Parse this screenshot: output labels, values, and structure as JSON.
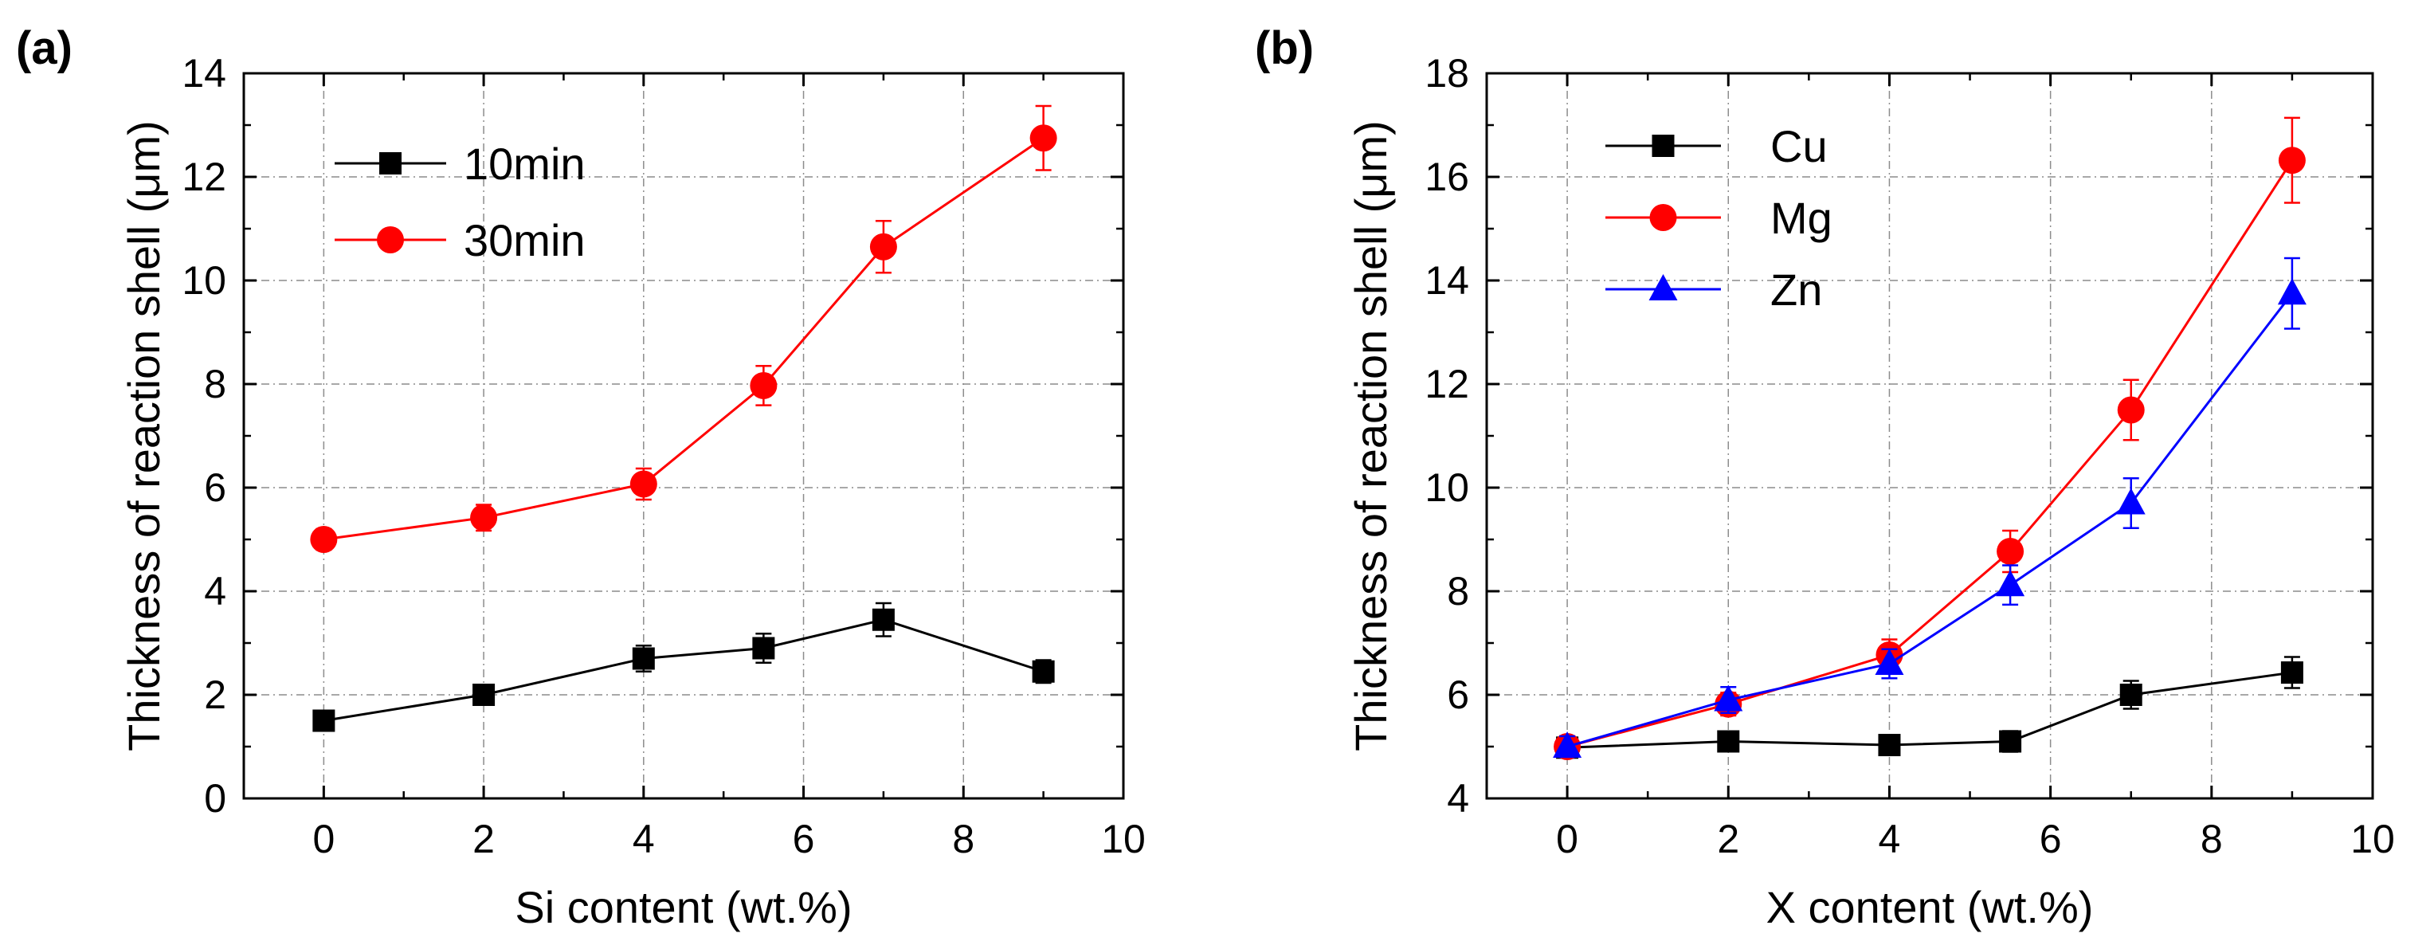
{
  "chart_data": [
    {
      "type": "line",
      "panel_label": "(a)",
      "title": "",
      "xlabel": "Si content (wt.%)",
      "ylabel": "Thickness of reaction shell (μm)",
      "xlim": [
        -1,
        10
      ],
      "ylim": [
        0,
        14
      ],
      "xticks": [
        0,
        2,
        4,
        6,
        8,
        10
      ],
      "yticks": [
        0,
        2,
        4,
        6,
        8,
        10,
        12,
        14
      ],
      "grid": true,
      "legend": "top-left",
      "series": [
        {
          "name": "10min",
          "color": "#000000",
          "marker": "square",
          "x": [
            0,
            2,
            4,
            5.5,
            7,
            9
          ],
          "y": [
            1.5,
            2.0,
            2.7,
            2.9,
            3.45,
            2.45
          ],
          "err": [
            0.12,
            0.15,
            0.25,
            0.28,
            0.32,
            0.22
          ]
        },
        {
          "name": "30min",
          "color": "#ff0000",
          "marker": "circle",
          "x": [
            0,
            2,
            4,
            5.5,
            7,
            9
          ],
          "y": [
            5.0,
            5.42,
            6.07,
            7.97,
            10.65,
            12.75
          ],
          "err": [
            0.2,
            0.25,
            0.3,
            0.38,
            0.5,
            0.62
          ]
        }
      ]
    },
    {
      "type": "line",
      "panel_label": "(b)",
      "title": "",
      "xlabel": "X content (wt.%)",
      "ylabel": "Thickness of reaction shell (μm)",
      "xlim": [
        -1,
        10
      ],
      "ylim": [
        4,
        18
      ],
      "xticks": [
        0,
        2,
        4,
        6,
        8,
        10
      ],
      "yticks": [
        4,
        6,
        8,
        10,
        12,
        14,
        16,
        18
      ],
      "grid": true,
      "legend": "top-left",
      "series": [
        {
          "name": "Cu",
          "color": "#000000",
          "marker": "square",
          "x": [
            0,
            2,
            4,
            5.5,
            7,
            9
          ],
          "y": [
            4.98,
            5.1,
            5.03,
            5.1,
            6.0,
            6.43
          ],
          "err": [
            0.15,
            0.18,
            0.18,
            0.2,
            0.27,
            0.3
          ]
        },
        {
          "name": "Mg",
          "color": "#ff0000",
          "marker": "circle",
          "x": [
            0,
            2,
            4,
            5.5,
            7,
            9
          ],
          "y": [
            5.0,
            5.82,
            6.77,
            8.77,
            11.5,
            16.32
          ],
          "err": [
            0.2,
            0.22,
            0.3,
            0.4,
            0.58,
            0.82
          ]
        },
        {
          "name": "Zn",
          "color": "#0000ff",
          "marker": "triangle",
          "x": [
            0,
            2,
            4,
            5.5,
            7,
            9
          ],
          "y": [
            5.0,
            5.9,
            6.6,
            8.12,
            9.7,
            13.75
          ],
          "err": [
            0.2,
            0.25,
            0.28,
            0.38,
            0.48,
            0.68
          ]
        }
      ]
    }
  ]
}
